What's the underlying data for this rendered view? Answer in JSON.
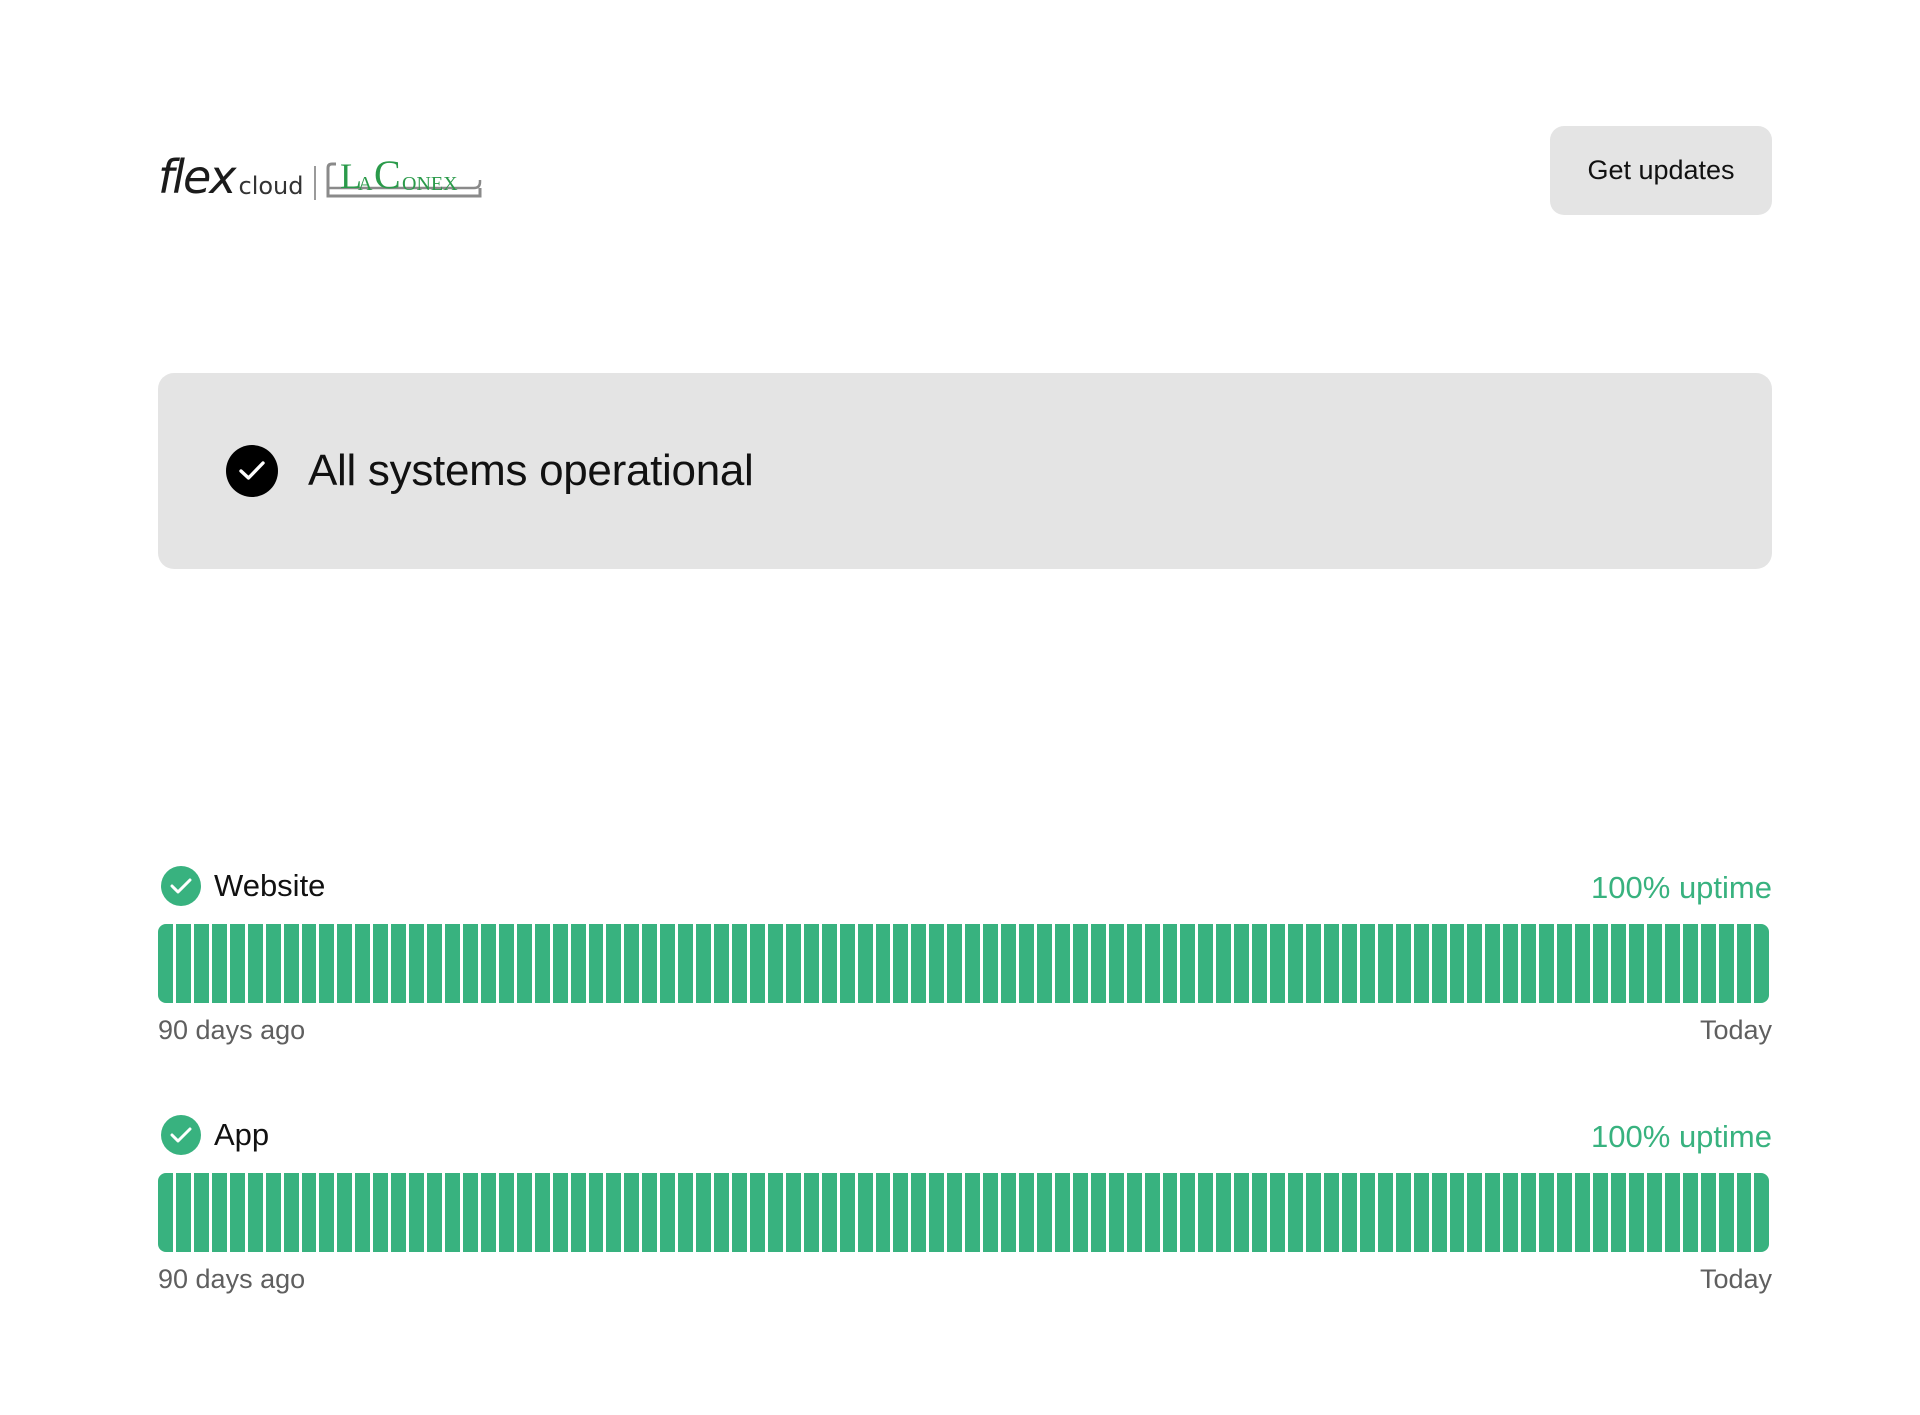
{
  "header": {
    "logo": {
      "brand_primary": "flex",
      "brand_secondary": "cloud",
      "partner_logo": "LaConex",
      "partner_color": "#2a9a4a"
    },
    "get_updates_label": "Get updates"
  },
  "status_banner": {
    "icon": "check-circle-icon",
    "text": "All systems operational"
  },
  "components": [
    {
      "name": "Website",
      "uptime_label": "100% uptime",
      "uptime_days": 90,
      "uptime_status": "operational",
      "start_label": "90 days ago",
      "end_label": "Today"
    },
    {
      "name": "App",
      "uptime_label": "100% uptime",
      "uptime_days": 90,
      "uptime_status": "operational",
      "start_label": "90 days ago",
      "end_label": "Today"
    }
  ],
  "colors": {
    "operational_green": "#38b27f",
    "banner_background": "#e4e4e4",
    "text_primary": "#111111",
    "text_muted": "#5f5f5f"
  }
}
